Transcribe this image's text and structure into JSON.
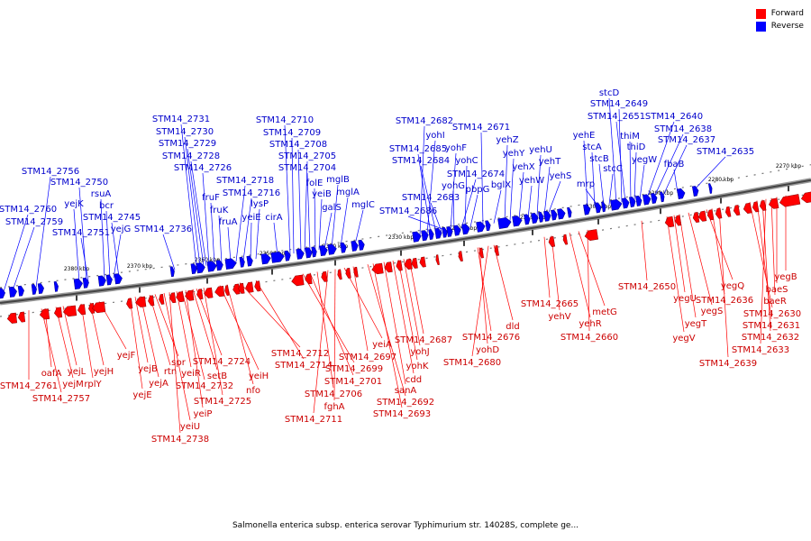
{
  "legend": {
    "forward": {
      "label": "Forward",
      "color": "#ff0000"
    },
    "reverse": {
      "label": "Reverse",
      "color": "#0000ff"
    }
  },
  "caption": "Salmonella enterica subsp. enterica serovar Typhimurium str. 14028S, complete ge...",
  "scale_labels": [
    "2270 kbp",
    "2280 kbp",
    "2290 kbp",
    "2300 kbp",
    "2310 kbp",
    "2320 kbp",
    "2330 kbp",
    "2340 kbp",
    "2350 kbp",
    "2360 kbp",
    "2370 kbp",
    "2380 kbp"
  ],
  "reverse_labels": [
    "STM14_2760",
    "STM14_2759",
    "STM14_2756",
    "yejK",
    "STM14_2751",
    "STM14_2750",
    "rsuA",
    "bcr",
    "STM14_2745",
    "yejG",
    "STM14_2736",
    "STM14_2731",
    "STM14_2730",
    "STM14_2729",
    "STM14_2728",
    "STM14_2726",
    "fruF",
    "fruK",
    "fruA",
    "STM14_2718",
    "STM14_2716",
    "yeiE",
    "lysP",
    "cirA",
    "STM14_2710",
    "STM14_2709",
    "STM14_2708",
    "STM14_2705",
    "STM14_2704",
    "folE",
    "yeiB",
    "galS",
    "mglB",
    "mglA",
    "mglC",
    "STM14_2682",
    "yohI",
    "STM14_2685",
    "STM14_2684",
    "STM14_2683",
    "STM14_2686",
    "yohF",
    "yohG",
    "STM14_2674",
    "yohC",
    "pbpG",
    "STM14_2671",
    "bglX",
    "yehZ",
    "yehY",
    "yehX",
    "yehW",
    "yehU",
    "yehT",
    "yehS",
    "yehE",
    "stcA",
    "mrp",
    "stcB",
    "stcC",
    "stcD",
    "STM14_2649",
    "STM14_2651",
    "thiM",
    "thiD",
    "yegW",
    "STM14_2640",
    "STM14_2638",
    "STM14_2637",
    "fbaB",
    "STM14_2635"
  ],
  "forward_labels": [
    "STM14_2761",
    "oafA",
    "STM14_2757",
    "yejM",
    "yejL",
    "rplY",
    "yejH",
    "yejF",
    "yejB",
    "yejE",
    "yejA",
    "rtn",
    "spr",
    "yeiU",
    "STM14_2738",
    "yeiR",
    "yeiP",
    "STM14_2732",
    "setB",
    "STM14_2725",
    "STM14_2724",
    "yeiH",
    "nfo",
    "STM14_2712",
    "STM14_2714",
    "STM14_2699",
    "STM14_2701",
    "STM14_2706",
    "STM14_2711",
    "fghA",
    "yeiA",
    "STM14_2697",
    "STM14_2692",
    "STM14_2693",
    "sanA",
    "cdd",
    "yohK",
    "yohJ",
    "STM14_2687",
    "STM14_2676",
    "yohD",
    "STM14_2680",
    "dld",
    "STM14_2665",
    "yehV",
    "yehR",
    "metG",
    "STM14_2660",
    "STM14_2650",
    "yegV",
    "yegU",
    "yegT",
    "yegS",
    "yegQ",
    "STM14_2636",
    "STM14_2639",
    "STM14_2630",
    "STM14_2631",
    "STM14_2632",
    "STM14_2633",
    "baeR",
    "baeS",
    "yegB"
  ]
}
